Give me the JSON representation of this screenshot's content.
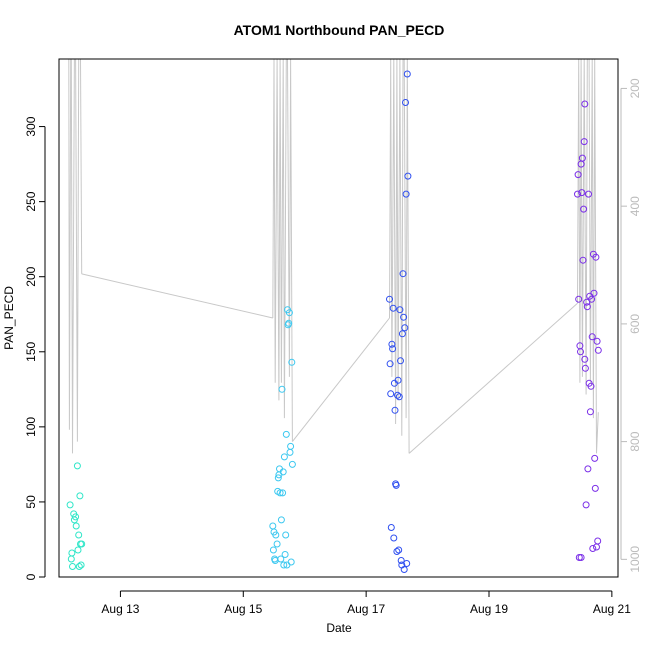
{
  "chart_data": {
    "type": "scatter",
    "title": "ATOM1 Northbound PAN_PECD",
    "xlabel": "Date",
    "ylabel": "PAN_PECD",
    "x_unit": "day of August",
    "xlim": [
      12.0,
      21.1
    ],
    "ylim": [
      0,
      345
    ],
    "x_ticks": [
      {
        "value": 13,
        "label": "Aug 13"
      },
      {
        "value": 15,
        "label": "Aug 15"
      },
      {
        "value": 17,
        "label": "Aug 17"
      },
      {
        "value": 19,
        "label": "Aug 19"
      },
      {
        "value": 21,
        "label": "Aug 21"
      }
    ],
    "y_ticks": [
      0,
      50,
      100,
      150,
      200,
      250,
      300
    ],
    "secondary_y": {
      "ticks": [
        200,
        400,
        600,
        800,
        1000
      ],
      "range_top": 200,
      "range_bottom": 1000,
      "top_value_at_plot_top": 150,
      "bottom_value_at_plot_bottom": 1030,
      "color": "#bbbbbb",
      "line_color": "#c8c8c8"
    },
    "grid": false,
    "legend": "none",
    "points": [
      {
        "x": 12.18,
        "y": 48,
        "c": "#2ee6c8"
      },
      {
        "x": 12.2,
        "y": 12,
        "c": "#2ee6c8"
      },
      {
        "x": 12.21,
        "y": 16,
        "c": "#2ee6c8"
      },
      {
        "x": 12.22,
        "y": 7,
        "c": "#2ee6c8"
      },
      {
        "x": 12.24,
        "y": 42,
        "c": "#2ee6c8"
      },
      {
        "x": 12.25,
        "y": 38,
        "c": "#2ee6c8"
      },
      {
        "x": 12.27,
        "y": 40,
        "c": "#2ee6c8"
      },
      {
        "x": 12.28,
        "y": 34,
        "c": "#2ee6c8"
      },
      {
        "x": 12.3,
        "y": 74,
        "c": "#2ee6c8"
      },
      {
        "x": 12.31,
        "y": 18,
        "c": "#2ee6c8"
      },
      {
        "x": 12.32,
        "y": 28,
        "c": "#2ee6c8"
      },
      {
        "x": 12.33,
        "y": 7,
        "c": "#2ee6c8"
      },
      {
        "x": 12.34,
        "y": 54,
        "c": "#2ee6c8"
      },
      {
        "x": 12.35,
        "y": 22,
        "c": "#2ee6c8"
      },
      {
        "x": 12.36,
        "y": 8,
        "c": "#2ee6c8"
      },
      {
        "x": 12.37,
        "y": 22,
        "c": "#2ee6c8"
      },
      {
        "x": 15.48,
        "y": 34,
        "c": "#3cc8f0"
      },
      {
        "x": 15.49,
        "y": 18,
        "c": "#3cc8f0"
      },
      {
        "x": 15.5,
        "y": 30,
        "c": "#3cc8f0"
      },
      {
        "x": 15.51,
        "y": 12,
        "c": "#3cc8f0"
      },
      {
        "x": 15.52,
        "y": 11,
        "c": "#3cc8f0"
      },
      {
        "x": 15.53,
        "y": 28,
        "c": "#3cc8f0"
      },
      {
        "x": 15.55,
        "y": 22,
        "c": "#3cc8f0"
      },
      {
        "x": 15.56,
        "y": 57,
        "c": "#3cc8f0"
      },
      {
        "x": 15.57,
        "y": 66,
        "c": "#3cc8f0"
      },
      {
        "x": 15.58,
        "y": 68,
        "c": "#3cc8f0"
      },
      {
        "x": 15.59,
        "y": 72,
        "c": "#3cc8f0"
      },
      {
        "x": 15.6,
        "y": 56,
        "c": "#3cc8f0"
      },
      {
        "x": 15.61,
        "y": 12,
        "c": "#3cc8f0"
      },
      {
        "x": 15.62,
        "y": 38,
        "c": "#3cc8f0"
      },
      {
        "x": 15.63,
        "y": 125,
        "c": "#3cc8f0"
      },
      {
        "x": 15.64,
        "y": 56,
        "c": "#3cc8f0"
      },
      {
        "x": 15.65,
        "y": 70,
        "c": "#3cc8f0"
      },
      {
        "x": 15.66,
        "y": 8,
        "c": "#3cc8f0"
      },
      {
        "x": 15.67,
        "y": 80,
        "c": "#3cc8f0"
      },
      {
        "x": 15.68,
        "y": 15,
        "c": "#3cc8f0"
      },
      {
        "x": 15.69,
        "y": 28,
        "c": "#3cc8f0"
      },
      {
        "x": 15.7,
        "y": 95,
        "c": "#3cc8f0"
      },
      {
        "x": 15.71,
        "y": 8,
        "c": "#3cc8f0"
      },
      {
        "x": 15.72,
        "y": 178,
        "c": "#3cc8f0"
      },
      {
        "x": 15.73,
        "y": 168,
        "c": "#3cc8f0"
      },
      {
        "x": 15.74,
        "y": 169,
        "c": "#3cc8f0"
      },
      {
        "x": 15.75,
        "y": 176,
        "c": "#3cc8f0"
      },
      {
        "x": 15.76,
        "y": 83,
        "c": "#3cc8f0"
      },
      {
        "x": 15.77,
        "y": 87,
        "c": "#3cc8f0"
      },
      {
        "x": 15.78,
        "y": 10,
        "c": "#3cc8f0"
      },
      {
        "x": 15.79,
        "y": 143,
        "c": "#3cc8f0"
      },
      {
        "x": 15.8,
        "y": 75,
        "c": "#3cc8f0"
      },
      {
        "x": 17.38,
        "y": 185,
        "c": "#2f4ff0"
      },
      {
        "x": 17.39,
        "y": 142,
        "c": "#2f4ff0"
      },
      {
        "x": 17.4,
        "y": 122,
        "c": "#2f4ff0"
      },
      {
        "x": 17.41,
        "y": 33,
        "c": "#2f4ff0"
      },
      {
        "x": 17.42,
        "y": 155,
        "c": "#2f4ff0"
      },
      {
        "x": 17.43,
        "y": 152,
        "c": "#2f4ff0"
      },
      {
        "x": 17.44,
        "y": 179,
        "c": "#2f4ff0"
      },
      {
        "x": 17.45,
        "y": 26,
        "c": "#2f4ff0"
      },
      {
        "x": 17.46,
        "y": 129,
        "c": "#2f4ff0"
      },
      {
        "x": 17.47,
        "y": 111,
        "c": "#2f4ff0"
      },
      {
        "x": 17.48,
        "y": 62,
        "c": "#2f4ff0"
      },
      {
        "x": 17.49,
        "y": 61,
        "c": "#2f4ff0"
      },
      {
        "x": 17.5,
        "y": 17,
        "c": "#2f4ff0"
      },
      {
        "x": 17.51,
        "y": 121,
        "c": "#2f4ff0"
      },
      {
        "x": 17.52,
        "y": 131,
        "c": "#2f4ff0"
      },
      {
        "x": 17.53,
        "y": 18,
        "c": "#2f4ff0"
      },
      {
        "x": 17.54,
        "y": 120,
        "c": "#2f4ff0"
      },
      {
        "x": 17.55,
        "y": 178,
        "c": "#2f4ff0"
      },
      {
        "x": 17.56,
        "y": 144,
        "c": "#2f4ff0"
      },
      {
        "x": 17.57,
        "y": 11,
        "c": "#2f4ff0"
      },
      {
        "x": 17.58,
        "y": 8,
        "c": "#2f4ff0"
      },
      {
        "x": 17.59,
        "y": 162,
        "c": "#2f4ff0"
      },
      {
        "x": 17.6,
        "y": 202,
        "c": "#2f4ff0"
      },
      {
        "x": 17.61,
        "y": 173,
        "c": "#2f4ff0"
      },
      {
        "x": 17.62,
        "y": 5,
        "c": "#2f4ff0"
      },
      {
        "x": 17.63,
        "y": 166,
        "c": "#2f4ff0"
      },
      {
        "x": 17.64,
        "y": 316,
        "c": "#2f4ff0"
      },
      {
        "x": 17.65,
        "y": 255,
        "c": "#2f4ff0"
      },
      {
        "x": 17.66,
        "y": 9,
        "c": "#2f4ff0"
      },
      {
        "x": 17.67,
        "y": 335,
        "c": "#2f4ff0"
      },
      {
        "x": 17.68,
        "y": 267,
        "c": "#2f4ff0"
      },
      {
        "x": 20.44,
        "y": 255,
        "c": "#7a2ee8"
      },
      {
        "x": 20.45,
        "y": 268,
        "c": "#7a2ee8"
      },
      {
        "x": 20.46,
        "y": 185,
        "c": "#7a2ee8"
      },
      {
        "x": 20.47,
        "y": 13,
        "c": "#7a2ee8"
      },
      {
        "x": 20.48,
        "y": 154,
        "c": "#7a2ee8"
      },
      {
        "x": 20.49,
        "y": 150,
        "c": "#7a2ee8"
      },
      {
        "x": 20.5,
        "y": 275,
        "c": "#7a2ee8"
      },
      {
        "x": 20.51,
        "y": 256,
        "c": "#7a2ee8"
      },
      {
        "x": 20.52,
        "y": 279,
        "c": "#7a2ee8"
      },
      {
        "x": 20.53,
        "y": 211,
        "c": "#7a2ee8"
      },
      {
        "x": 20.54,
        "y": 245,
        "c": "#7a2ee8"
      },
      {
        "x": 20.55,
        "y": 290,
        "c": "#7a2ee8"
      },
      {
        "x": 20.56,
        "y": 315,
        "c": "#7a2ee8"
      },
      {
        "x": 20.57,
        "y": 139,
        "c": "#7a2ee8"
      },
      {
        "x": 20.58,
        "y": 48,
        "c": "#7a2ee8"
      },
      {
        "x": 20.59,
        "y": 183,
        "c": "#7a2ee8"
      },
      {
        "x": 20.6,
        "y": 180,
        "c": "#7a2ee8"
      },
      {
        "x": 20.61,
        "y": 72,
        "c": "#7a2ee8"
      },
      {
        "x": 20.62,
        "y": 255,
        "c": "#7a2ee8"
      },
      {
        "x": 20.63,
        "y": 129,
        "c": "#7a2ee8"
      },
      {
        "x": 20.64,
        "y": 187,
        "c": "#7a2ee8"
      },
      {
        "x": 20.65,
        "y": 110,
        "c": "#7a2ee8"
      },
      {
        "x": 20.66,
        "y": 127,
        "c": "#7a2ee8"
      },
      {
        "x": 20.67,
        "y": 185,
        "c": "#7a2ee8"
      },
      {
        "x": 20.68,
        "y": 160,
        "c": "#7a2ee8"
      },
      {
        "x": 20.69,
        "y": 19,
        "c": "#7a2ee8"
      },
      {
        "x": 20.7,
        "y": 215,
        "c": "#7a2ee8"
      },
      {
        "x": 20.71,
        "y": 189,
        "c": "#7a2ee8"
      },
      {
        "x": 20.72,
        "y": 79,
        "c": "#7a2ee8"
      },
      {
        "x": 20.73,
        "y": 59,
        "c": "#7a2ee8"
      },
      {
        "x": 20.74,
        "y": 213,
        "c": "#7a2ee8"
      },
      {
        "x": 20.75,
        "y": 20,
        "c": "#7a2ee8"
      },
      {
        "x": 20.76,
        "y": 157,
        "c": "#7a2ee8"
      },
      {
        "x": 20.77,
        "y": 24,
        "c": "#7a2ee8"
      },
      {
        "x": 20.78,
        "y": 151,
        "c": "#7a2ee8"
      },
      {
        "x": 20.5,
        "y": 13,
        "c": "#7a2ee8"
      },
      {
        "x": 20.56,
        "y": 145,
        "c": "#7a2ee8"
      }
    ],
    "secondary_lines": [
      {
        "x": [
          12.15,
          12.16,
          12.17,
          12.19,
          12.2,
          12.22,
          12.25,
          12.27,
          12.3,
          12.32,
          12.35,
          12.37
        ],
        "y": [
          150,
          150,
          780,
          150,
          150,
          820,
          150,
          150,
          800,
          150,
          150,
          515
        ]
      },
      {
        "x": [
          12.37,
          15.48
        ],
        "y": [
          515,
          590
        ]
      },
      {
        "x": [
          15.48,
          15.5,
          15.52,
          15.55,
          15.58,
          15.6,
          15.62,
          15.65,
          15.67,
          15.7,
          15.72,
          15.75,
          15.77,
          15.8
        ],
        "y": [
          590,
          150,
          700,
          150,
          730,
          150,
          700,
          150,
          760,
          150,
          150,
          690,
          150,
          800
        ]
      },
      {
        "x": [
          15.8,
          17.38
        ],
        "y": [
          800,
          590
        ]
      },
      {
        "x": [
          17.38,
          17.4,
          17.42,
          17.45,
          17.48,
          17.5,
          17.52,
          17.55,
          17.58,
          17.6,
          17.62,
          17.65,
          17.67,
          17.7
        ],
        "y": [
          590,
          150,
          690,
          150,
          770,
          150,
          730,
          150,
          790,
          150,
          150,
          760,
          150,
          820
        ]
      },
      {
        "x": [
          17.7,
          20.44
        ],
        "y": [
          820,
          565
        ]
      },
      {
        "x": [
          20.44,
          20.46,
          20.48,
          20.5,
          20.52,
          20.55,
          20.58,
          20.6,
          20.63,
          20.65,
          20.68,
          20.7,
          20.72,
          20.75,
          20.78
        ],
        "y": [
          565,
          150,
          700,
          150,
          690,
          150,
          720,
          150,
          150,
          700,
          150,
          760,
          150,
          820,
          750
        ]
      }
    ]
  }
}
